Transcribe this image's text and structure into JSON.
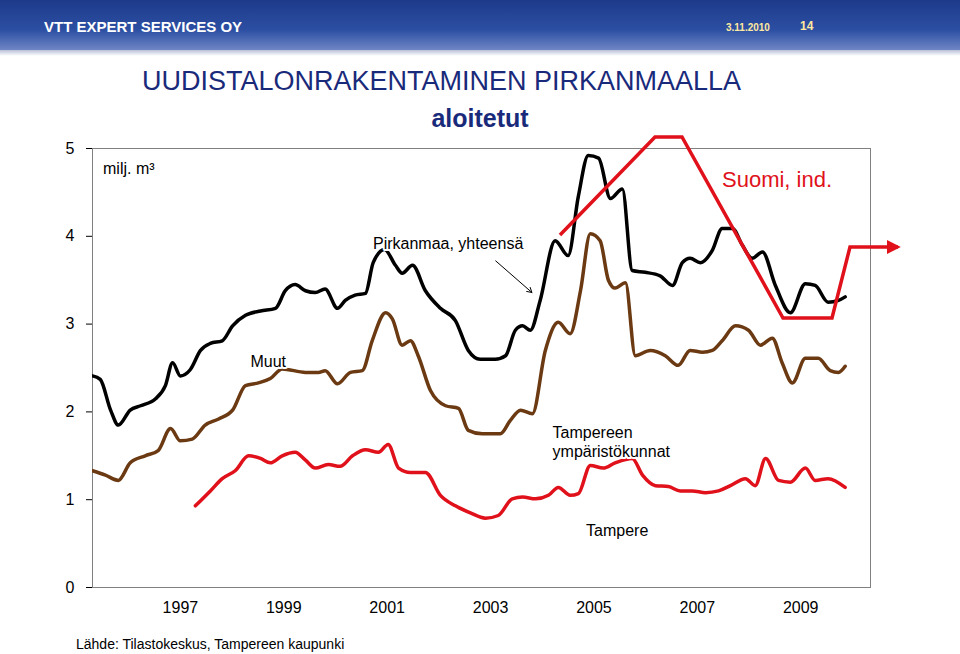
{
  "chart_data": {
    "type": "line",
    "header": {
      "company": "VTT EXPERT SERVICES OY",
      "date": "3.11.2010",
      "page": "14"
    },
    "title": "UUDISTALONRAKENTAMINEN PIRKANMAALLA",
    "subtitle": "aloitetut",
    "y_label": "milj. m³",
    "source": "Lähde: Tilastokeskus, Tampereen kaupunki",
    "annotations": [
      {
        "text": "Muut"
      },
      {
        "text": "Suomi, ind.",
        "color": "#e0111a"
      }
    ],
    "xlim": [
      1995.8,
      2010.85
    ],
    "xticks": [
      {
        "value": 1997.5,
        "label": "1997"
      },
      {
        "value": 1999.5,
        "label": "1999"
      },
      {
        "value": 2001.5,
        "label": "2001"
      },
      {
        "value": 2003.5,
        "label": "2003"
      },
      {
        "value": 2005.5,
        "label": "2005"
      },
      {
        "value": 2007.5,
        "label": "2007"
      },
      {
        "value": 2009.5,
        "label": "2009"
      }
    ],
    "ylim": [
      0,
      5
    ],
    "yticks": [
      0,
      1,
      2,
      3,
      4,
      5
    ],
    "grid": false,
    "series": [
      {
        "name": "Pirkanmaa, yhteensä",
        "color": "#000000",
        "x": [
          1995.8,
          1995.95,
          1996.15,
          1996.3,
          1996.53,
          1996.73,
          1997.02,
          1997.21,
          1997.35,
          1997.5,
          1997.69,
          1997.89,
          1998.08,
          1998.31,
          1998.51,
          1998.76,
          1999.05,
          1999.34,
          1999.53,
          1999.72,
          1999.92,
          2000.11,
          2000.3,
          2000.54,
          2000.69,
          2000.88,
          2001.08,
          2001.23,
          2001.45,
          2001.66,
          2001.79,
          2001.99,
          2002.24,
          2002.53,
          2002.82,
          2003.07,
          2003.3,
          2003.59,
          2003.79,
          2003.98,
          2004.12,
          2004.27,
          2004.46,
          2004.75,
          2005.0,
          2005.2,
          2005.39,
          2005.59,
          2005.82,
          2006.05,
          2006.24,
          2006.49,
          2006.78,
          2007.02,
          2007.21,
          2007.36,
          2007.56,
          2007.79,
          2007.98,
          2008.18,
          2008.37,
          2008.56,
          2008.76,
          2009.01,
          2009.3,
          2009.59,
          2009.78,
          2010.03,
          2010.23,
          2010.36
        ],
        "values": [
          2.41,
          2.37,
          2.02,
          1.85,
          2.02,
          2.07,
          2.15,
          2.3,
          2.56,
          2.41,
          2.48,
          2.7,
          2.78,
          2.81,
          2.98,
          3.1,
          3.15,
          3.18,
          3.38,
          3.45,
          3.38,
          3.36,
          3.4,
          3.18,
          3.27,
          3.33,
          3.35,
          3.7,
          3.85,
          3.67,
          3.58,
          3.67,
          3.38,
          3.18,
          3.04,
          2.7,
          2.6,
          2.6,
          2.64,
          2.93,
          2.98,
          2.93,
          3.27,
          3.95,
          3.78,
          4.46,
          4.92,
          4.89,
          4.43,
          4.54,
          3.61,
          3.59,
          3.55,
          3.44,
          3.7,
          3.75,
          3.7,
          3.84,
          4.09,
          4.09,
          3.9,
          3.75,
          3.82,
          3.44,
          3.13,
          3.46,
          3.44,
          3.25,
          3.27,
          3.31
        ]
      },
      {
        "name": "Tampereen ympäristökunnat",
        "color": "#6b3a12",
        "x": [
          1995.8,
          1996.05,
          1996.3,
          1996.53,
          1996.82,
          1997.07,
          1997.31,
          1997.5,
          1997.73,
          1997.98,
          1998.24,
          1998.51,
          1998.76,
          1999.01,
          1999.24,
          1999.47,
          1999.92,
          2000.17,
          2000.3,
          2000.54,
          2000.79,
          2001.02,
          2001.21,
          2001.47,
          2001.6,
          2001.79,
          2001.95,
          2002.1,
          2002.34,
          2002.63,
          2002.88,
          2003.07,
          2003.34,
          2003.69,
          2003.88,
          2004.08,
          2004.31,
          2004.56,
          2004.81,
          2005.04,
          2005.24,
          2005.43,
          2005.62,
          2005.78,
          2005.91,
          2006.11,
          2006.3,
          2006.59,
          2006.88,
          2007.13,
          2007.36,
          2007.6,
          2007.79,
          2007.98,
          2008.24,
          2008.49,
          2008.72,
          2008.95,
          2009.14,
          2009.34,
          2009.59,
          2009.84,
          2010.07,
          2010.23,
          2010.36
        ],
        "values": [
          1.33,
          1.28,
          1.22,
          1.42,
          1.5,
          1.56,
          1.81,
          1.67,
          1.69,
          1.85,
          1.92,
          2.02,
          2.3,
          2.33,
          2.38,
          2.49,
          2.45,
          2.45,
          2.47,
          2.32,
          2.45,
          2.47,
          2.81,
          3.13,
          3.06,
          2.76,
          2.81,
          2.64,
          2.24,
          2.07,
          2.04,
          1.79,
          1.75,
          1.75,
          1.9,
          2.02,
          1.98,
          2.7,
          3.02,
          2.89,
          3.38,
          4.03,
          3.95,
          3.5,
          3.41,
          3.47,
          2.64,
          2.7,
          2.64,
          2.53,
          2.7,
          2.68,
          2.7,
          2.81,
          2.98,
          2.93,
          2.76,
          2.84,
          2.56,
          2.33,
          2.61,
          2.61,
          2.47,
          2.45,
          2.52
        ]
      },
      {
        "name": "Tampere",
        "color": "#e0111a",
        "x": [
          1997.79,
          1998.08,
          1998.31,
          1998.56,
          1998.82,
          1999.05,
          1999.24,
          1999.47,
          1999.72,
          1999.92,
          2000.11,
          2000.36,
          2000.59,
          2000.83,
          2001.08,
          2001.33,
          2001.52,
          2001.72,
          2001.95,
          2002.24,
          2002.53,
          2002.82,
          2003.11,
          2003.4,
          2003.65,
          2003.92,
          2004.12,
          2004.37,
          2004.62,
          2004.81,
          2005.04,
          2005.2,
          2005.43,
          2005.68,
          2005.91,
          2006.24,
          2006.44,
          2006.69,
          2006.94,
          2007.17,
          2007.4,
          2007.66,
          2007.91,
          2008.14,
          2008.43,
          2008.62,
          2008.82,
          2009.07,
          2009.3,
          2009.59,
          2009.78,
          2010.03,
          2010.36
        ],
        "values": [
          0.93,
          1.1,
          1.24,
          1.33,
          1.5,
          1.47,
          1.42,
          1.5,
          1.54,
          1.45,
          1.36,
          1.4,
          1.38,
          1.5,
          1.57,
          1.54,
          1.63,
          1.36,
          1.31,
          1.31,
          1.05,
          0.93,
          0.85,
          0.79,
          0.82,
          1.01,
          1.03,
          1.01,
          1.05,
          1.14,
          1.05,
          1.07,
          1.39,
          1.36,
          1.42,
          1.47,
          1.28,
          1.16,
          1.15,
          1.1,
          1.1,
          1.08,
          1.1,
          1.16,
          1.24,
          1.16,
          1.47,
          1.22,
          1.2,
          1.36,
          1.22,
          1.24,
          1.14
        ]
      }
    ]
  }
}
